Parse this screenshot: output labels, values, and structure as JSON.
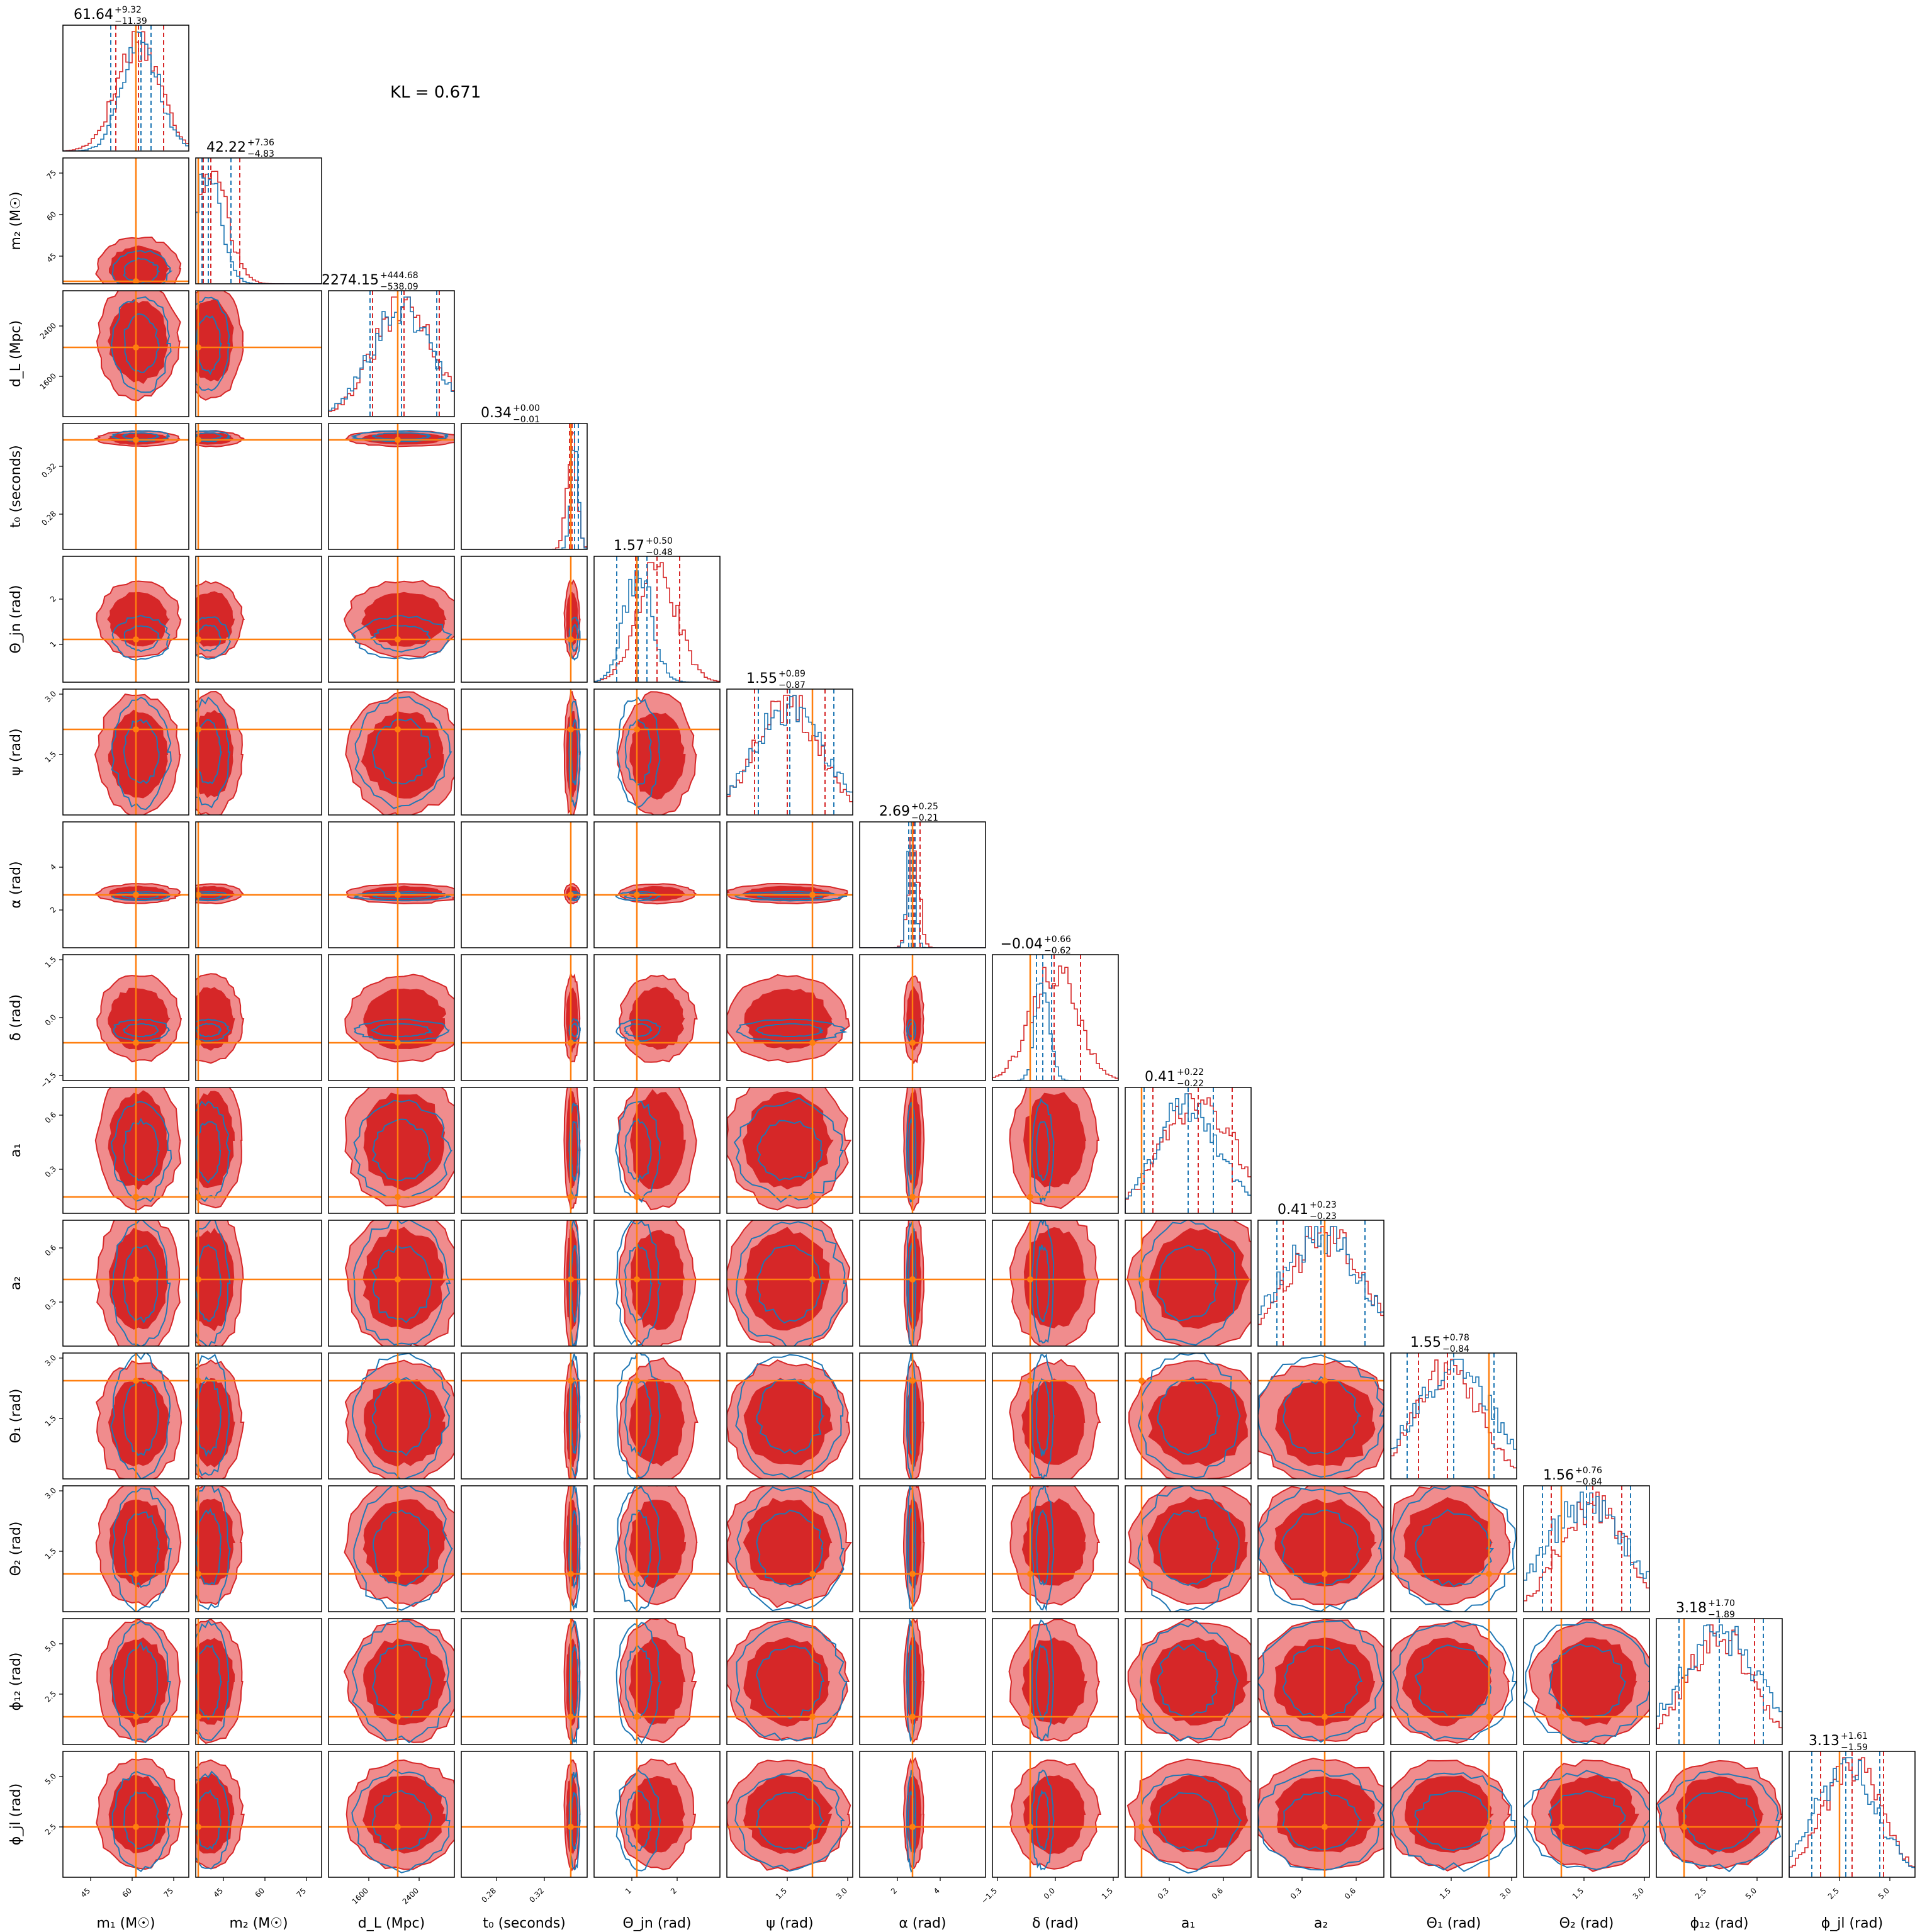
{
  "chart_data": {
    "type": "corner",
    "annotation": "KL = 0.671",
    "colors": {
      "red": "#d62728",
      "red_light": "#f08c8d",
      "blue": "#1f77b4",
      "truth": "#ff7f0e",
      "frame": "#000000"
    },
    "parameters": [
      {
        "xlabel": "m₁ (M☉)",
        "ylabel": "m₁ (M☉)",
        "ticks": [
          "45",
          "60",
          "75"
        ],
        "tick_pos": [
          0.22,
          0.55,
          0.88
        ],
        "title_main": "61.64",
        "title_sup": "+9.32",
        "title_sub": "−11.39",
        "truth": 0.58,
        "median_red": 0.6,
        "lo_red": 0.42,
        "hi_red": 0.8,
        "median_blue": 0.62,
        "lo_blue": 0.38,
        "hi_blue": 0.7
      },
      {
        "xlabel": "m₂ (M☉)",
        "ylabel": "m₂ (M☉)",
        "ticks": [
          "45",
          "60",
          "75"
        ],
        "tick_pos": [
          0.22,
          0.55,
          0.88
        ],
        "title_main": "42.22",
        "title_sup": "+7.36",
        "title_sub": "−4.83",
        "truth": 0.02,
        "median_red": 0.12,
        "lo_red": 0.06,
        "hi_red": 0.35,
        "median_blue": 0.1,
        "lo_blue": 0.05,
        "hi_blue": 0.28
      },
      {
        "xlabel": "d_L (Mpc)",
        "ylabel": "d_L (Mpc)",
        "ticks": [
          "1600",
          "2400"
        ],
        "tick_pos": [
          0.32,
          0.72
        ],
        "title_main": "2274.15",
        "title_sup": "+444.68",
        "title_sub": "−538.09",
        "truth": 0.55,
        "median_red": 0.6,
        "lo_red": 0.35,
        "hi_red": 0.88,
        "median_blue": 0.58,
        "lo_blue": 0.33,
        "hi_blue": 0.86
      },
      {
        "xlabel": "t₀ (seconds)",
        "ylabel": "t₀ (seconds)",
        "ticks": [
          "0.28",
          "0.32"
        ],
        "tick_pos": [
          0.28,
          0.66
        ],
        "title_main": "0.34",
        "title_sup": "+0.00",
        "title_sub": "−0.01",
        "truth": 0.87,
        "median_red": 0.88,
        "lo_red": 0.86,
        "hi_red": 0.93,
        "median_blue": 0.9,
        "lo_blue": 0.87,
        "hi_blue": 0.93
      },
      {
        "xlabel": "Θ_jn (rad)",
        "ylabel": "Θ_jn (rad)",
        "ticks": [
          "1",
          "2"
        ],
        "tick_pos": [
          0.3,
          0.66
        ],
        "title_main": "1.57",
        "title_sup": "+0.50",
        "title_sub": "−0.48",
        "truth": 0.34,
        "median_red": 0.5,
        "lo_red": 0.33,
        "hi_red": 0.68,
        "median_blue": 0.35,
        "lo_blue": 0.18,
        "hi_blue": 0.42
      },
      {
        "xlabel": "ψ (rad)",
        "ylabel": "ψ (rad)",
        "ticks": [
          "1.5",
          "3.0"
        ],
        "tick_pos": [
          0.48,
          0.96
        ],
        "title_main": "1.55",
        "title_sup": "+0.89",
        "title_sub": "−0.87",
        "truth": 0.68,
        "median_red": 0.48,
        "lo_red": 0.22,
        "hi_red": 0.78,
        "median_blue": 0.5,
        "lo_blue": 0.25,
        "hi_blue": 0.85
      },
      {
        "xlabel": "α (rad)",
        "ylabel": "α (rad)",
        "ticks": [
          "2",
          "4"
        ],
        "tick_pos": [
          0.3,
          0.64
        ],
        "title_main": "2.69",
        "title_sup": "+0.25",
        "title_sub": "−0.21",
        "truth": 0.42,
        "median_red": 0.43,
        "lo_red": 0.39,
        "hi_red": 0.48,
        "median_blue": 0.41,
        "lo_blue": 0.39,
        "hi_blue": 0.44
      },
      {
        "xlabel": "δ (rad)",
        "ylabel": "δ (rad)",
        "ticks": [
          "−1.5",
          "0.0",
          "1.5"
        ],
        "tick_pos": [
          0.04,
          0.5,
          0.96
        ],
        "title_main": "−0.04",
        "title_sup": "+0.66",
        "title_sub": "−0.62",
        "truth": 0.3,
        "median_red": 0.49,
        "lo_red": 0.3,
        "hi_red": 0.7,
        "median_blue": 0.4,
        "lo_blue": 0.35,
        "hi_blue": 0.47
      },
      {
        "xlabel": "a₁",
        "ylabel": "a₁",
        "ticks": [
          "0.3",
          "0.6"
        ],
        "tick_pos": [
          0.35,
          0.78
        ],
        "title_main": "0.41",
        "title_sup": "+0.22",
        "title_sub": "−0.22",
        "truth": 0.13,
        "median_red": 0.58,
        "lo_red": 0.22,
        "hi_red": 0.85,
        "median_blue": 0.5,
        "lo_blue": 0.15,
        "hi_blue": 0.7
      },
      {
        "xlabel": "a₂",
        "ylabel": "a₂",
        "ticks": [
          "0.3",
          "0.6"
        ],
        "tick_pos": [
          0.35,
          0.78
        ],
        "title_main": "0.41",
        "title_sup": "+0.23",
        "title_sub": "−0.23",
        "truth": 0.53,
        "median_red": 0.53,
        "lo_red": 0.2,
        "hi_red": 0.85,
        "median_blue": 0.5,
        "lo_blue": 0.15,
        "hi_blue": 0.85
      },
      {
        "xlabel": "Θ₁ (rad)",
        "ylabel": "Θ₁ (rad)",
        "ticks": [
          "1.5",
          "3.0"
        ],
        "tick_pos": [
          0.48,
          0.96
        ],
        "title_main": "1.55",
        "title_sup": "+0.78",
        "title_sub": "−0.84",
        "truth": 0.78,
        "median_red": 0.45,
        "lo_red": 0.22,
        "hi_red": 0.78,
        "median_blue": 0.5,
        "lo_blue": 0.13,
        "hi_blue": 0.82
      },
      {
        "xlabel": "Θ₂ (rad)",
        "ylabel": "Θ₂ (rad)",
        "ticks": [
          "1.5",
          "3.0"
        ],
        "tick_pos": [
          0.48,
          0.96
        ],
        "title_main": "1.56",
        "title_sup": "+0.76",
        "title_sub": "−0.84",
        "truth": 0.3,
        "median_red": 0.55,
        "lo_red": 0.22,
        "hi_red": 0.78,
        "median_blue": 0.5,
        "lo_blue": 0.15,
        "hi_blue": 0.85
      },
      {
        "xlabel": "ϕ₁₂ (rad)",
        "ylabel": "ϕ₁₂ (rad)",
        "ticks": [
          "2.5",
          "5.0"
        ],
        "tick_pos": [
          0.4,
          0.8
        ],
        "title_main": "3.18",
        "title_sup": "+1.70",
        "title_sub": "−1.89",
        "truth": 0.22,
        "median_red": 0.5,
        "lo_red": 0.22,
        "hi_red": 0.78,
        "median_blue": 0.5,
        "lo_blue": 0.18,
        "hi_blue": 0.85
      },
      {
        "xlabel": "ϕ_jl (rad)",
        "ylabel": "ϕ_jl (rad)",
        "ticks": [
          "2.5",
          "5.0"
        ],
        "tick_pos": [
          0.4,
          0.8
        ],
        "title_main": "3.13",
        "title_sup": "+1.61",
        "title_sub": "−1.59",
        "truth": 0.4,
        "median_red": 0.5,
        "lo_red": 0.25,
        "hi_red": 0.75,
        "median_blue": 0.45,
        "lo_blue": 0.18,
        "hi_blue": 0.72
      }
    ]
  }
}
